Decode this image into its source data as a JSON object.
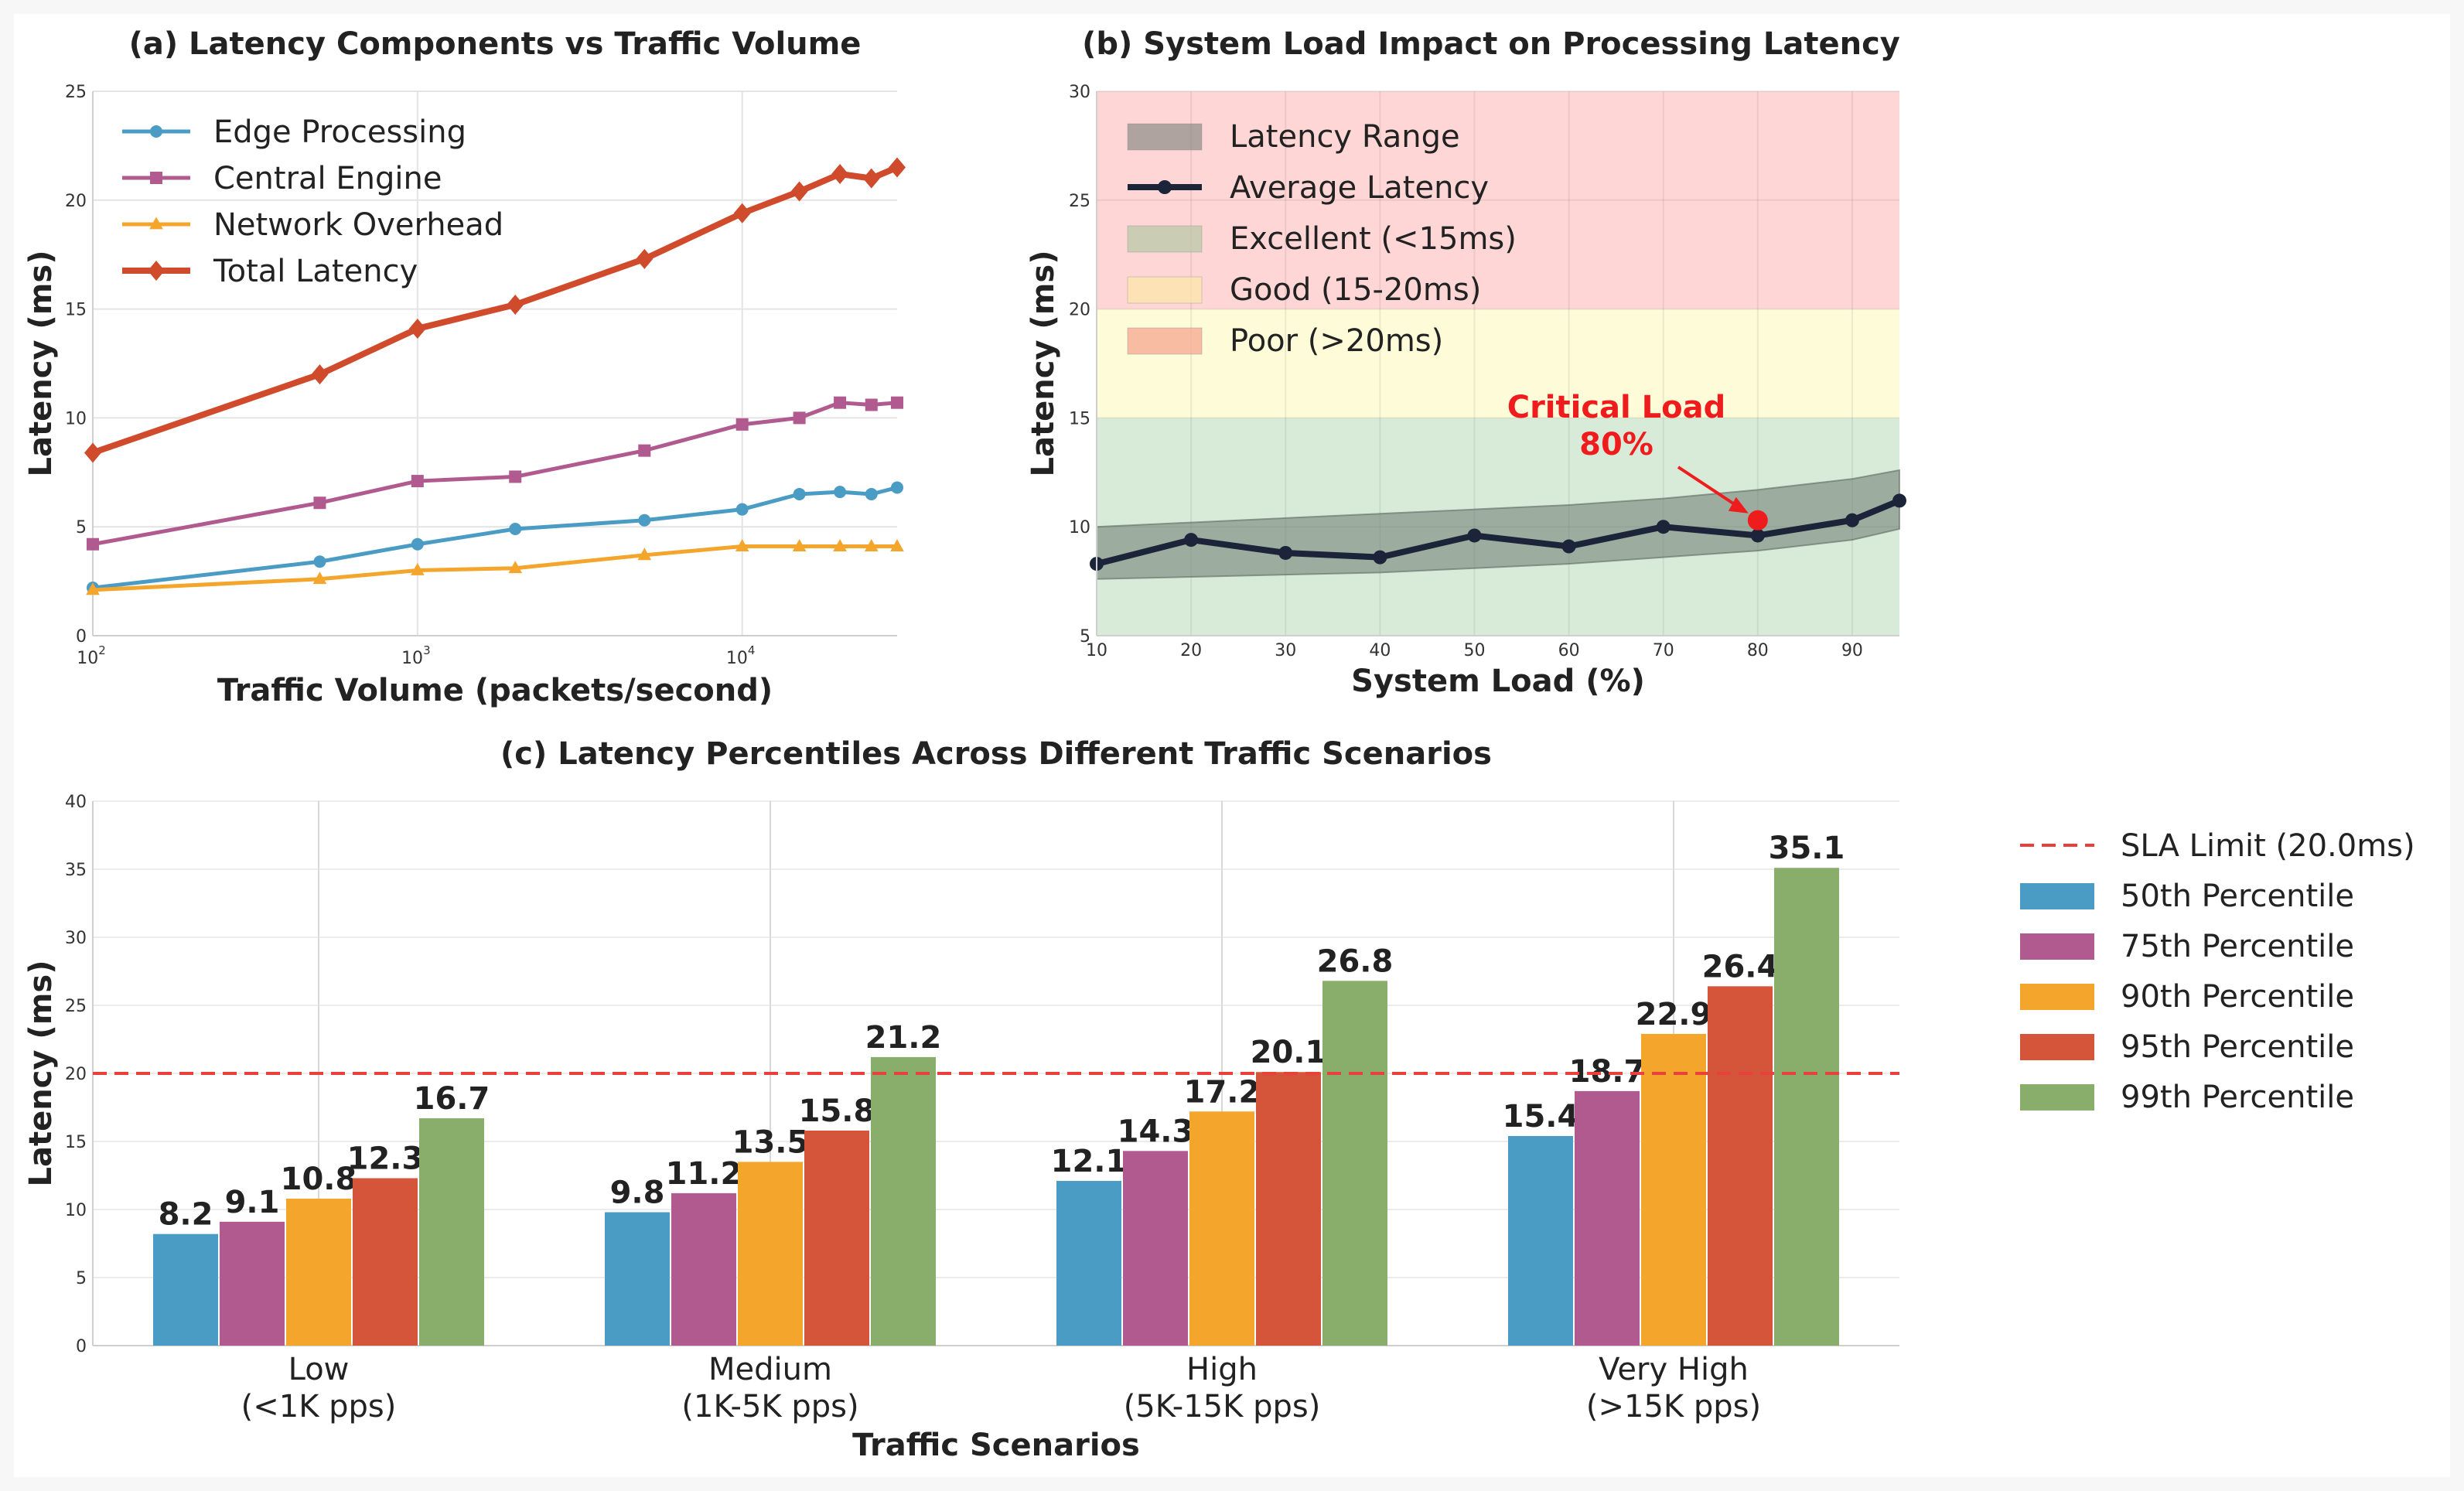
{
  "chart_data": [
    {
      "id": "a",
      "type": "line",
      "title": "(a) Latency Components vs Traffic Volume",
      "xlabel": "Traffic Volume (packets/second)",
      "ylabel": "Latency (ms)",
      "xscale": "log",
      "xlim": [
        100,
        30000
      ],
      "ylim": [
        0,
        25
      ],
      "xticks": [
        {
          "base": "10",
          "exp": "2",
          "value": 100
        },
        {
          "base": "10",
          "exp": "3",
          "value": 1000
        },
        {
          "base": "10",
          "exp": "4",
          "value": 10000
        }
      ],
      "yticks": [
        0,
        5,
        10,
        15,
        20,
        25
      ],
      "legend_position": "top-left",
      "x": [
        100,
        500,
        1000,
        2000,
        5000,
        10000,
        15000,
        20000,
        25000,
        30000
      ],
      "series": [
        {
          "name": "Edge Processing",
          "color": "#4a9cc4",
          "marker": "circle",
          "values": [
            2.2,
            3.4,
            4.2,
            4.9,
            5.3,
            5.8,
            6.5,
            6.6,
            6.5,
            6.8
          ]
        },
        {
          "name": "Central Engine",
          "color": "#b05a90",
          "marker": "square",
          "values": [
            4.2,
            6.1,
            7.1,
            7.3,
            8.5,
            9.7,
            10.0,
            10.7,
            10.6,
            10.7
          ]
        },
        {
          "name": "Network Overhead",
          "color": "#f4a52c",
          "marker": "triangle",
          "values": [
            2.1,
            2.6,
            3.0,
            3.1,
            3.7,
            4.1,
            4.1,
            4.1,
            4.1,
            4.1
          ]
        },
        {
          "name": "Total Latency",
          "color": "#cf4b2c",
          "marker": "diamond",
          "values": [
            8.4,
            12.0,
            14.1,
            15.2,
            17.3,
            19.4,
            20.4,
            21.2,
            21.0,
            21.5
          ]
        }
      ]
    },
    {
      "id": "b",
      "type": "line",
      "title": "(b) System Load Impact on Processing Latency",
      "xlabel": "System Load (%)",
      "ylabel": "Latency (ms)",
      "xlim": [
        10,
        95
      ],
      "ylim": [
        5,
        30
      ],
      "xticks": [
        10,
        20,
        30,
        40,
        50,
        60,
        70,
        80,
        90
      ],
      "yticks": [
        5,
        10,
        15,
        20,
        25,
        30
      ],
      "legend_position": "top-left",
      "x": [
        10,
        20,
        30,
        40,
        50,
        60,
        70,
        80,
        90,
        95
      ],
      "series": [
        {
          "name": "Average Latency",
          "color": "#1b2438",
          "values": [
            8.3,
            9.4,
            8.8,
            8.6,
            9.6,
            9.1,
            10.0,
            9.6,
            10.3,
            11.2
          ]
        }
      ],
      "range_band": {
        "name": "Latency Range",
        "color": "#6b7a72",
        "lower": [
          7.6,
          7.7,
          7.8,
          7.9,
          8.1,
          8.3,
          8.6,
          8.9,
          9.4,
          9.9
        ],
        "upper": [
          10.0,
          10.2,
          10.4,
          10.6,
          10.8,
          11.0,
          11.3,
          11.7,
          12.2,
          12.6
        ]
      },
      "zones": [
        {
          "name": "Excellent (<15ms)",
          "from": 5,
          "to": 15,
          "color": "#d8ebd8"
        },
        {
          "name": "Good (15-20ms)",
          "from": 15,
          "to": 20,
          "color": "#fdfbd8"
        },
        {
          "name": "Poor (>20ms)",
          "from": 20,
          "to": 30,
          "color": "#ffd6d6"
        }
      ],
      "annotation": {
        "text_line1": "Critical Load",
        "text_line2": "80%",
        "x": 80,
        "y": 10.3,
        "color": "#ee1c1c"
      }
    },
    {
      "id": "c",
      "type": "bar",
      "title": "(c) Latency Percentiles Across Different Traffic Scenarios",
      "xlabel": "Traffic Scenarios",
      "ylabel": "Latency (ms)",
      "ylim": [
        0,
        40
      ],
      "yticks": [
        0,
        5,
        10,
        15,
        20,
        25,
        30,
        35,
        40
      ],
      "legend_position": "right",
      "categories": [
        {
          "line1": "Low",
          "line2": "(<1K pps)"
        },
        {
          "line1": "Medium",
          "line2": "(1K-5K pps)"
        },
        {
          "line1": "High",
          "line2": "(5K-15K pps)"
        },
        {
          "line1": "Very High",
          "line2": "(>15K pps)"
        }
      ],
      "series": [
        {
          "name": "50th Percentile",
          "color": "#4a9cc4",
          "values": [
            8.2,
            9.8,
            12.1,
            15.4
          ]
        },
        {
          "name": "75th Percentile",
          "color": "#b05a90",
          "values": [
            9.1,
            11.2,
            14.3,
            18.7
          ]
        },
        {
          "name": "90th Percentile",
          "color": "#f4a52c",
          "values": [
            10.8,
            13.5,
            17.2,
            22.9
          ]
        },
        {
          "name": "95th Percentile",
          "color": "#d5553a",
          "values": [
            12.3,
            15.8,
            20.1,
            26.4
          ]
        },
        {
          "name": "99th Percentile",
          "color": "#89ad6a",
          "values": [
            16.7,
            21.2,
            26.8,
            35.1
          ]
        }
      ],
      "reference_line": {
        "name": "SLA Limit (20.0ms)",
        "value": 20.0,
        "color": "#e8413c",
        "style": "dashed"
      }
    }
  ]
}
